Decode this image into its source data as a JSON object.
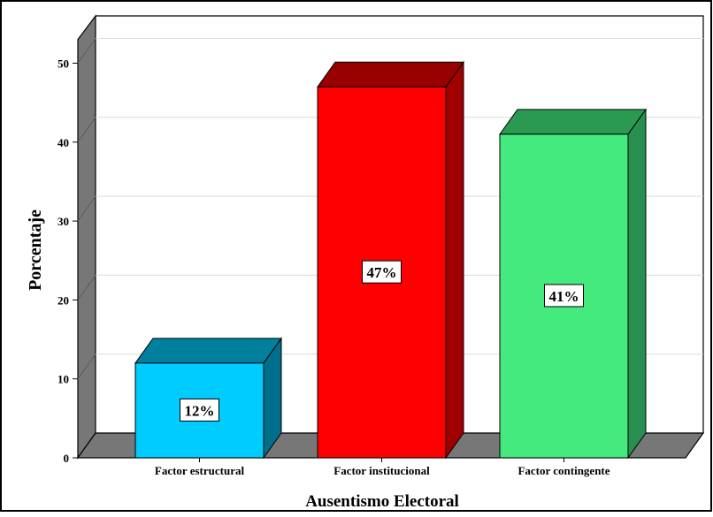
{
  "chart_data": {
    "type": "bar",
    "title": "",
    "xlabel": "Ausentismo Electoral",
    "ylabel": "Porcentaje",
    "categories": [
      "Factor estructural",
      "Factor institucional",
      "Factor contingente"
    ],
    "values": [
      12,
      47,
      41
    ],
    "data_labels": [
      "12%",
      "47%",
      "41%"
    ],
    "ylim": [
      0,
      53
    ],
    "yticks": [
      "0",
      "10",
      "20",
      "30",
      "40",
      "50"
    ],
    "ytick_values": [
      0,
      10,
      20,
      30,
      40,
      50
    ],
    "grid": true,
    "legend": "none",
    "style": "3d",
    "colors": [
      {
        "front": "#00ccff",
        "top": "#00809f",
        "side": "#006f8c"
      },
      {
        "front": "#ff0000",
        "top": "#990000",
        "side": "#a00000"
      },
      {
        "front": "#44ea7d",
        "top": "#2a9a52",
        "side": "#279050"
      }
    ]
  }
}
